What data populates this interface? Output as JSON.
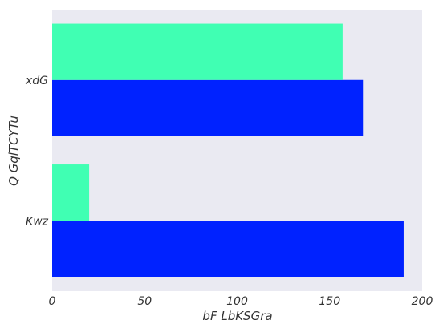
{
  "chart_data": {
    "type": "bar",
    "orientation": "horizontal",
    "categories": [
      "xdG",
      "Kwz"
    ],
    "series": [
      {
        "color": "#0022ff",
        "values": [
          168,
          190
        ]
      },
      {
        "color": "#40ffb3",
        "values": [
          157,
          20
        ]
      }
    ],
    "xlabel": "bF LbKSGra",
    "ylabel": "Q GqlTCYTu",
    "xlim": [
      0,
      200
    ],
    "xticks": [
      0,
      50,
      100,
      150,
      200
    ],
    "grid": false,
    "background": "#eaeaf2"
  }
}
